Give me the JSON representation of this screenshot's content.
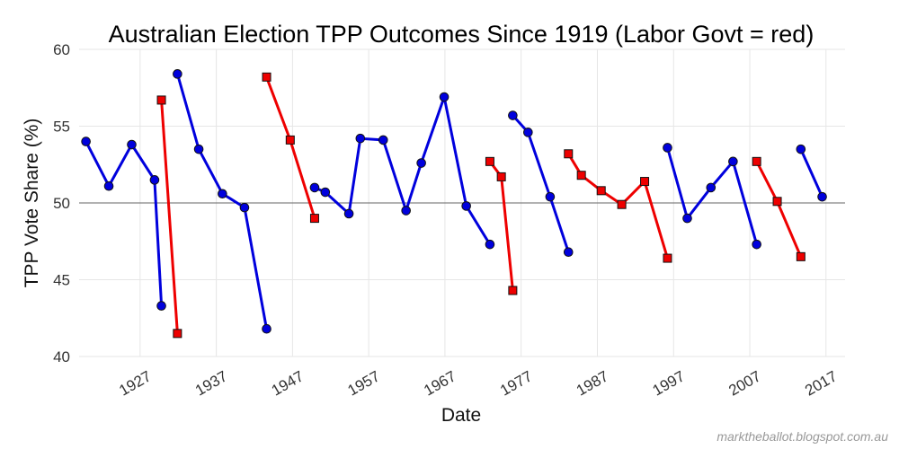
{
  "chart_data": {
    "type": "line",
    "title": "Australian Election TPP Outcomes Since 1919 (Labor Govt = red)",
    "xlabel": "Date",
    "ylabel": "TPP Vote Share (%)",
    "xlim": [
      1919.0,
      2019.5
    ],
    "ylim": [
      40,
      60
    ],
    "x_ticks": [
      1927,
      1937,
      1947,
      1957,
      1967,
      1977,
      1987,
      1997,
      2007,
      2017
    ],
    "y_ticks": [
      40,
      45,
      50,
      55,
      60
    ],
    "reference_line": 50,
    "grid": true,
    "credit": "marktheballot.blogspot.com.au",
    "colors": {
      "non_labor": "#0000dd",
      "labor": "#ee0000",
      "reference": "#666666",
      "grid": "#e6e6e6"
    },
    "series": [
      {
        "labor": false,
        "points": [
          [
            1919.9,
            54.0
          ],
          [
            1922.9,
            51.1
          ],
          [
            1925.9,
            53.8
          ],
          [
            1928.9,
            51.5
          ],
          [
            1929.8,
            43.3
          ]
        ]
      },
      {
        "labor": true,
        "points": [
          [
            1929.8,
            56.7
          ],
          [
            1931.9,
            41.5
          ]
        ]
      },
      {
        "labor": false,
        "points": [
          [
            1931.9,
            58.4
          ],
          [
            1934.7,
            53.5
          ],
          [
            1937.8,
            50.6
          ],
          [
            1940.7,
            49.7
          ],
          [
            1943.6,
            41.8
          ]
        ]
      },
      {
        "labor": true,
        "points": [
          [
            1943.6,
            58.2
          ],
          [
            1946.7,
            54.1
          ],
          [
            1949.9,
            49.0
          ]
        ]
      },
      {
        "labor": false,
        "points": [
          [
            1949.9,
            51.0
          ],
          [
            1951.3,
            50.7
          ],
          [
            1954.4,
            49.3
          ],
          [
            1955.9,
            54.2
          ],
          [
            1958.9,
            54.1
          ],
          [
            1961.9,
            49.5
          ],
          [
            1963.9,
            52.6
          ],
          [
            1966.9,
            56.9
          ],
          [
            1969.8,
            49.8
          ],
          [
            1972.9,
            47.3
          ]
        ]
      },
      {
        "labor": true,
        "points": [
          [
            1972.9,
            52.7
          ],
          [
            1974.4,
            51.7
          ],
          [
            1975.9,
            44.3
          ]
        ]
      },
      {
        "labor": false,
        "points": [
          [
            1975.9,
            55.7
          ],
          [
            1977.9,
            54.6
          ],
          [
            1980.8,
            50.4
          ],
          [
            1983.2,
            46.8
          ]
        ]
      },
      {
        "labor": true,
        "points": [
          [
            1983.2,
            53.2
          ],
          [
            1984.9,
            51.8
          ],
          [
            1987.5,
            50.8
          ],
          [
            1990.2,
            49.9
          ],
          [
            1993.2,
            51.4
          ],
          [
            1996.2,
            46.4
          ]
        ]
      },
      {
        "labor": false,
        "points": [
          [
            1996.2,
            53.6
          ],
          [
            1998.8,
            49.0
          ],
          [
            2001.9,
            51.0
          ],
          [
            2004.8,
            52.7
          ],
          [
            2007.9,
            47.3
          ]
        ]
      },
      {
        "labor": true,
        "points": [
          [
            2007.9,
            52.7
          ],
          [
            2010.6,
            50.1
          ],
          [
            2013.7,
            46.5
          ]
        ]
      },
      {
        "labor": false,
        "points": [
          [
            2013.7,
            53.5
          ],
          [
            2016.5,
            50.4
          ]
        ]
      }
    ]
  }
}
